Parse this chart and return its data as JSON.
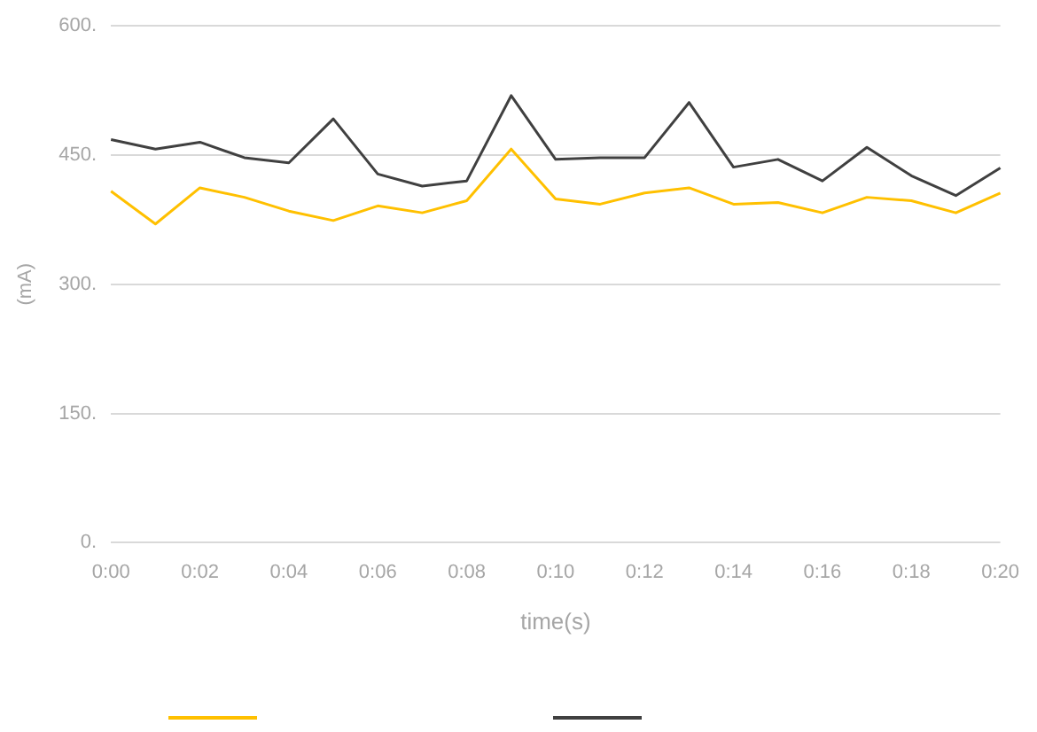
{
  "chart_data": {
    "type": "line",
    "xlabel": "time(s)",
    "ylabel": "(mA)",
    "categories": [
      "0:00",
      null,
      "0:02",
      null,
      "0:04",
      null,
      "0:06",
      null,
      "0:08",
      null,
      "0:10",
      null,
      "0:12",
      null,
      "0:14",
      null,
      "0:16",
      null,
      "0:18",
      null,
      "0:20"
    ],
    "series": [
      {
        "color": "#ffc000",
        "values": [
          408,
          370,
          412,
          401,
          385,
          374,
          391,
          383,
          397,
          457,
          399,
          393,
          406,
          412,
          393,
          395,
          383,
          401,
          397,
          383,
          406
        ]
      },
      {
        "color": "#404040",
        "values": [
          468,
          457,
          465,
          447,
          441,
          492,
          428,
          414,
          420,
          519,
          445,
          447,
          447,
          511,
          436,
          445,
          420,
          459,
          426,
          403,
          435
        ]
      }
    ],
    "ylim": [
      0,
      600
    ],
    "yticks": [
      {
        "value": 0,
        "label": "0."
      },
      {
        "value": 150,
        "label": "150."
      },
      {
        "value": 300,
        "label": "300."
      },
      {
        "value": 450,
        "label": "450."
      },
      {
        "value": 600,
        "label": "600."
      }
    ],
    "grid": "y",
    "marker": "none",
    "line_style": "solid"
  }
}
